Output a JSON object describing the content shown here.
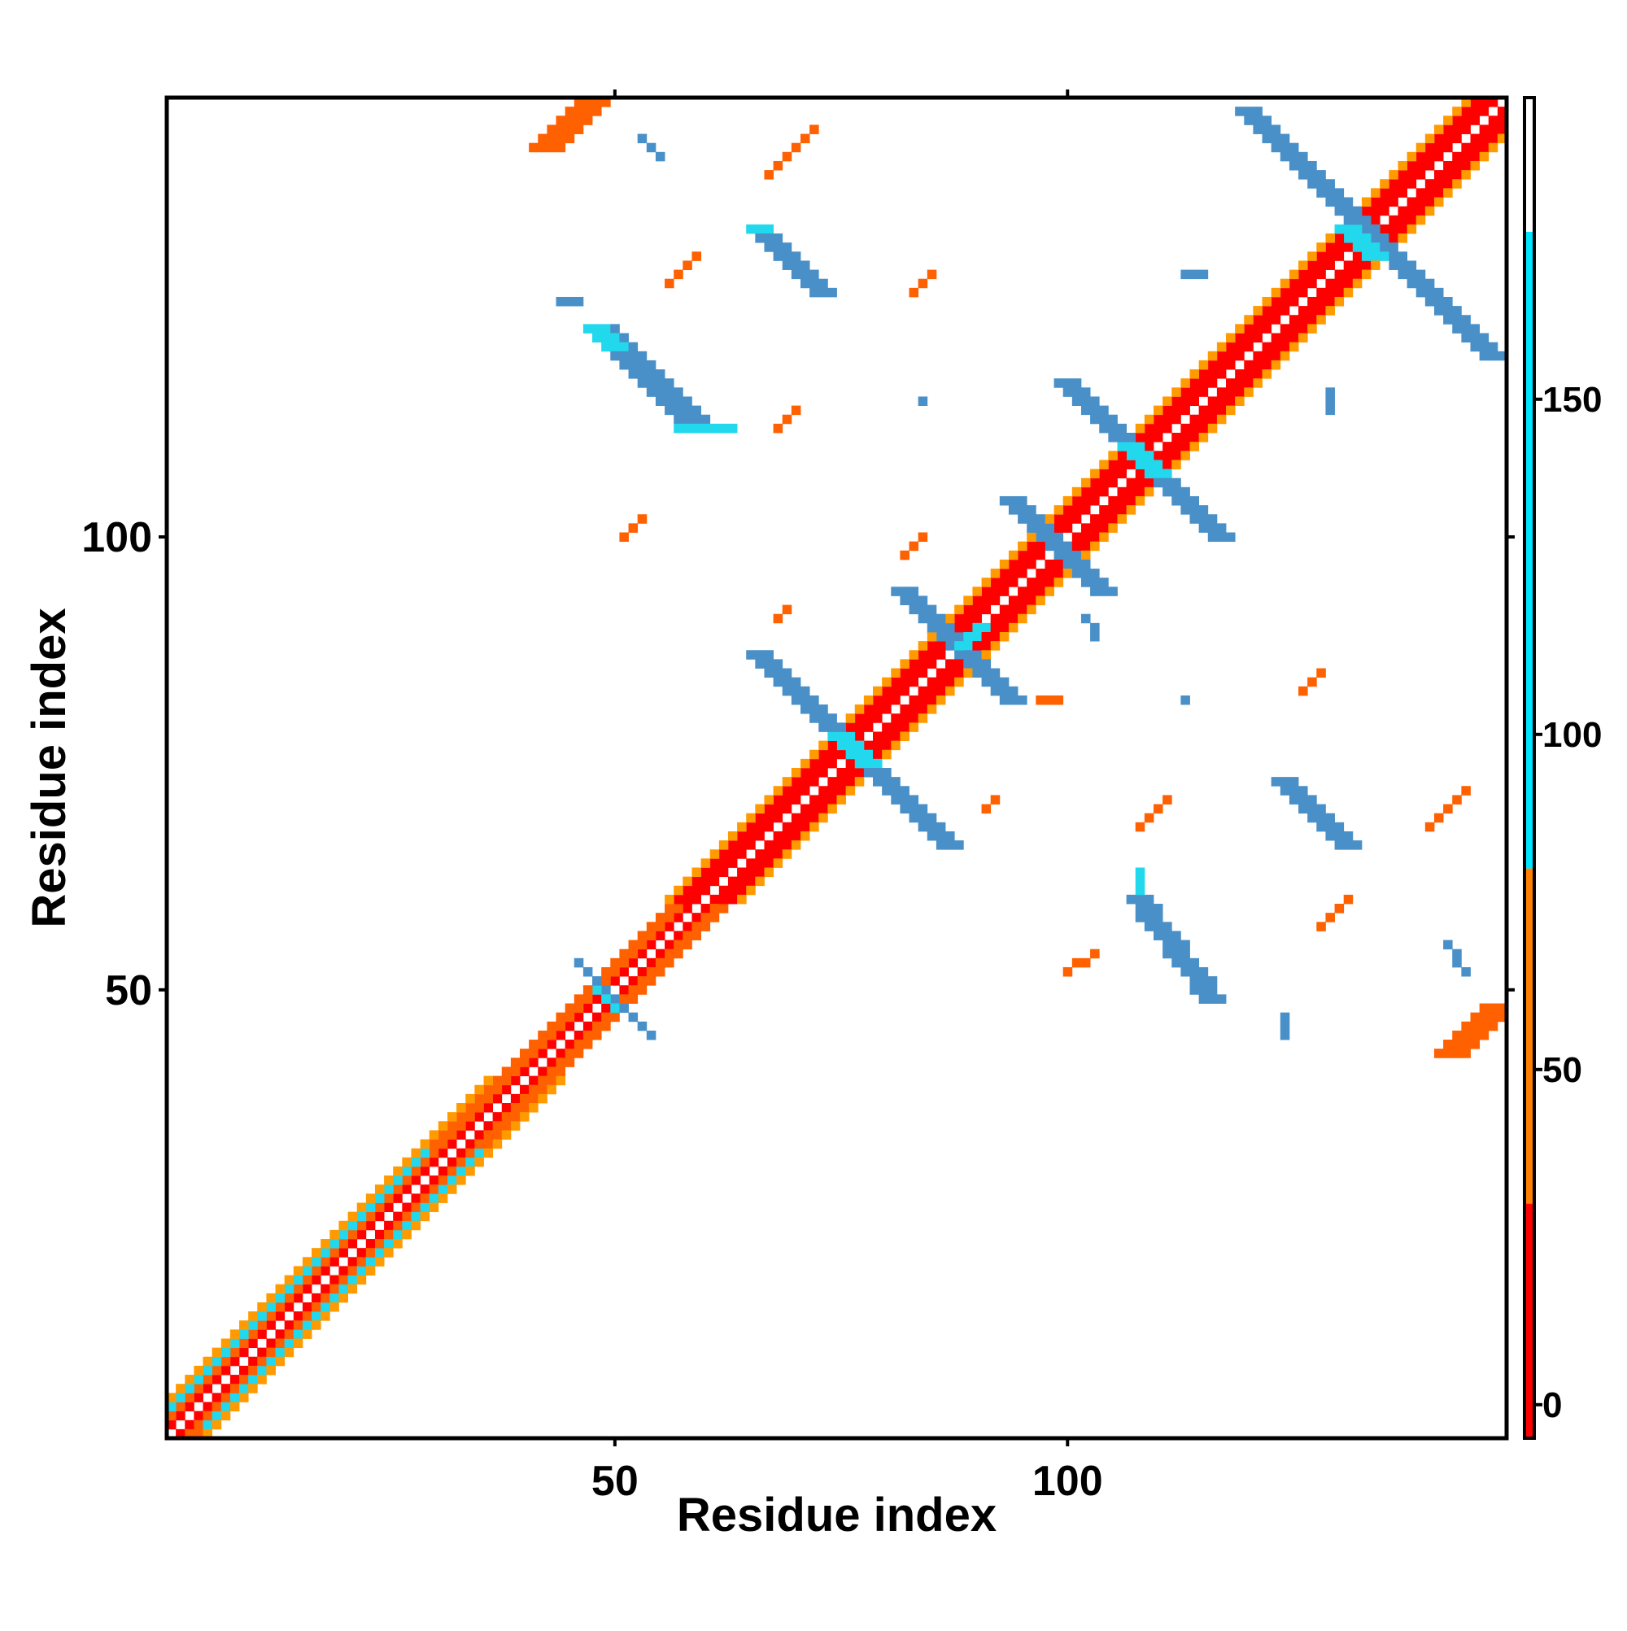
{
  "chart_data": {
    "type": "heatmap",
    "title": "",
    "xlabel": "Residue index",
    "ylabel": "Residue index",
    "x_range": [
      1,
      148
    ],
    "y_range": [
      1,
      148
    ],
    "x_ticks": [
      50,
      100
    ],
    "y_ticks": [
      50,
      100
    ],
    "colorbar": {
      "range": [
        -5,
        195
      ],
      "ticks": [
        0,
        50,
        100,
        150
      ],
      "bands": [
        {
          "from": -5,
          "to": 30,
          "color": "#ff0000"
        },
        {
          "from": 30,
          "to": 80,
          "color": "#ff8000"
        },
        {
          "from": 80,
          "to": 175,
          "color": "#00e5ff"
        },
        {
          "from": 175,
          "to": 195,
          "color": "#ffffff"
        }
      ]
    },
    "colors": {
      "diag": "#ff0000",
      "near": "#ff6000",
      "turn": "#ff9a00",
      "helix": "#22d8ec",
      "sheet": "#4a90c8"
    },
    "cells": [
      {
        "type": "diag",
        "x0": 1,
        "y0": 1,
        "x1": 148,
        "y1": 148,
        "offsets": [
          1,
          -1
        ]
      },
      {
        "type": "near",
        "x0": 1,
        "y0": 1,
        "x1": 60,
        "y1": 60,
        "offsets": [
          2,
          -2,
          3,
          -3
        ]
      },
      {
        "type": "turn",
        "x0": 1,
        "y0": 1,
        "x1": 40,
        "y1": 40,
        "offsets": [
          4,
          -4
        ]
      },
      {
        "type": "helix",
        "x0": 2,
        "y0": 2,
        "x1": 32,
        "y1": 32,
        "offsets": [
          3,
          -3
        ]
      },
      {
        "type": "diag",
        "x0": 60,
        "y0": 60,
        "x1": 148,
        "y1": 148,
        "offsets": [
          2,
          -2,
          3,
          -3
        ]
      },
      {
        "type": "turn",
        "x0": 60,
        "y0": 60,
        "x1": 148,
        "y1": 148,
        "offsets": [
          4,
          -4
        ]
      },
      {
        "type": "sheet",
        "x0": 46,
        "y0": 53,
        "x1": 54,
        "y1": 45
      },
      {
        "type": "helix",
        "x0": 48,
        "y0": 50,
        "x1": 50,
        "y1": 48
      },
      {
        "type": "sheet",
        "x0": 66,
        "y0": 87,
        "x1": 87,
        "y1": 66,
        "w": 3
      },
      {
        "type": "helix",
        "x0": 75,
        "y0": 78,
        "x1": 78,
        "y1": 75,
        "w": 3
      },
      {
        "type": "sheet",
        "x0": 82,
        "y0": 94,
        "x1": 94,
        "y1": 82,
        "w": 3
      },
      {
        "type": "helix",
        "x0": 88,
        "y0": 88,
        "x1": 90,
        "y1": 90,
        "w": 2
      },
      {
        "type": "sheet",
        "x0": 94,
        "y0": 104,
        "x1": 104,
        "y1": 94,
        "w": 3
      },
      {
        "type": "sheet",
        "x0": 100,
        "y0": 117,
        "x1": 117,
        "y1": 100,
        "w": 3
      },
      {
        "type": "helix",
        "x0": 107,
        "y0": 110,
        "x1": 110,
        "y1": 107,
        "w": 3
      },
      {
        "type": "sheet",
        "x0": 120,
        "y0": 147,
        "x1": 147,
        "y1": 120,
        "w": 3
      },
      {
        "type": "helix",
        "x0": 131,
        "y0": 134,
        "x1": 134,
        "y1": 131,
        "w": 3
      },
      {
        "type": "sheet",
        "x0": 48,
        "y0": 123,
        "x1": 58,
        "y1": 113,
        "w": 4
      },
      {
        "type": "helix",
        "x0": 48,
        "y0": 123,
        "x1": 50,
        "y1": 121,
        "w": 3
      },
      {
        "type": "helix",
        "x0": 57,
        "y0": 112,
        "x1": 63,
        "y1": 112,
        "w": 1
      },
      {
        "type": "sheet",
        "x0": 66,
        "y0": 134,
        "x1": 73,
        "y1": 127,
        "w": 3
      },
      {
        "type": "helix",
        "x0": 65,
        "y0": 134,
        "x1": 67,
        "y1": 134,
        "w": 1
      },
      {
        "type": "sheet",
        "x0": 108,
        "y0": 60,
        "x1": 116,
        "y1": 49,
        "w": 3
      },
      {
        "type": "helix",
        "x0": 108,
        "y0": 61,
        "x1": 108,
        "y1": 63,
        "w": 1
      },
      {
        "type": "sheet",
        "x0": 124,
        "y0": 73,
        "x1": 131,
        "y1": 66,
        "w": 3
      },
      {
        "type": "near",
        "x0": 42,
        "y0": 143,
        "x1": 47,
        "y1": 148,
        "w": 4
      },
      {
        "type": "near",
        "x0": 142,
        "y0": 43,
        "x1": 147,
        "y1": 48,
        "w": 4
      },
      {
        "type": "near",
        "x0": 67,
        "y0": 140,
        "x1": 72,
        "y1": 145,
        "w": 1
      },
      {
        "type": "near",
        "x0": 56,
        "y0": 128,
        "x1": 59,
        "y1": 131,
        "w": 1
      },
      {
        "type": "near",
        "x0": 68,
        "y0": 112,
        "x1": 70,
        "y1": 114,
        "w": 1
      },
      {
        "type": "near",
        "x0": 51,
        "y0": 100,
        "x1": 53,
        "y1": 102,
        "w": 1
      },
      {
        "type": "near",
        "x0": 108,
        "y0": 68,
        "x1": 111,
        "y1": 71,
        "w": 1
      },
      {
        "type": "near",
        "x0": 140,
        "y0": 68,
        "x1": 144,
        "y1": 72,
        "w": 1
      },
      {
        "type": "near",
        "x0": 128,
        "y0": 57,
        "x1": 131,
        "y1": 60,
        "w": 1
      },
      {
        "type": "near",
        "x0": 100,
        "y0": 52,
        "x1": 103,
        "y1": 54,
        "w": 1
      },
      {
        "type": "near",
        "x0": 126,
        "y0": 83,
        "x1": 128,
        "y1": 85,
        "w": 1
      },
      {
        "type": "near",
        "x0": 83,
        "y0": 127,
        "x1": 85,
        "y1": 129,
        "w": 1
      },
      {
        "type": "near",
        "x0": 82,
        "y0": 98,
        "x1": 84,
        "y1": 100,
        "w": 1
      },
      {
        "type": "near",
        "x0": 68,
        "y0": 91,
        "x1": 69,
        "y1": 92,
        "w": 1
      },
      {
        "type": "near",
        "x0": 91,
        "y0": 70,
        "x1": 92,
        "y1": 71,
        "w": 1
      },
      {
        "type": "near",
        "x0": 97,
        "y0": 82,
        "x1": 99,
        "y1": 82,
        "w": 1
      },
      {
        "type": "sheet",
        "x0": 53,
        "y0": 144,
        "x1": 55,
        "y1": 142,
        "w": 1
      },
      {
        "type": "sheet",
        "x0": 44,
        "y0": 126,
        "x1": 46,
        "y1": 126,
        "w": 1
      },
      {
        "type": "sheet",
        "x0": 113,
        "y0": 129,
        "x1": 115,
        "y1": 129,
        "w": 1
      },
      {
        "type": "sheet",
        "x0": 129,
        "y0": 116,
        "x1": 129,
        "y1": 114,
        "w": 1
      },
      {
        "type": "sheet",
        "x0": 142,
        "y0": 55,
        "x1": 144,
        "y1": 52,
        "w": 1
      },
      {
        "type": "sheet",
        "x0": 124,
        "y0": 47,
        "x1": 124,
        "y1": 45,
        "w": 1
      },
      {
        "type": "sheet",
        "x0": 102,
        "y0": 91,
        "x1": 103,
        "y1": 89,
        "w": 1
      },
      {
        "type": "sheet",
        "x0": 113,
        "y0": 82,
        "x1": 113,
        "y1": 82,
        "w": 1
      },
      {
        "type": "sheet",
        "x0": 84,
        "y0": 115,
        "x1": 84,
        "y1": 115,
        "w": 1
      }
    ]
  }
}
